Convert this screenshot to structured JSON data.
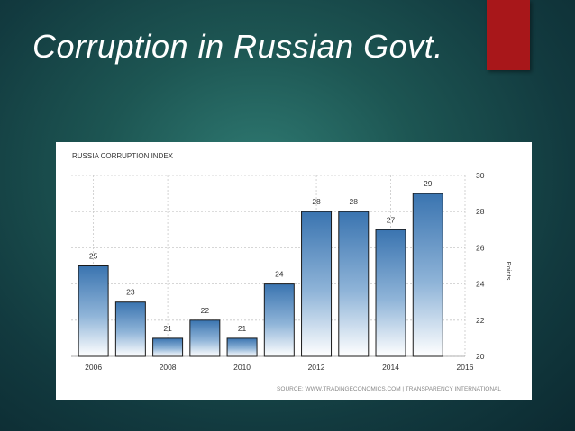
{
  "slide": {
    "title": "Corruption in Russian Govt."
  },
  "colors": {
    "accent": "#a8171a",
    "bar_top": "#3d78b3",
    "bar_bottom": "#ffffff",
    "grid": "#c8c8c8"
  },
  "chart_data": {
    "type": "bar",
    "title": "RUSSIA CORRUPTION INDEX",
    "ylabel": "Points",
    "categories": [
      "2006",
      "2007",
      "2008",
      "2009",
      "2010",
      "2011",
      "2012",
      "2013",
      "2014",
      "2015"
    ],
    "values": [
      25,
      23,
      21,
      22,
      21,
      24,
      28,
      28,
      27,
      29
    ],
    "x_ticks": [
      "2006",
      "2008",
      "2010",
      "2012",
      "2014",
      "2016"
    ],
    "y_ticks": [
      "20",
      "22",
      "24",
      "26",
      "28",
      "30"
    ],
    "ylim": [
      20,
      30
    ],
    "grid": true,
    "y_axis_side": "right",
    "source": "SOURCE: WWW.TRADINGECONOMICS.COM | TRANSPARENCY INTERNATIONAL"
  }
}
